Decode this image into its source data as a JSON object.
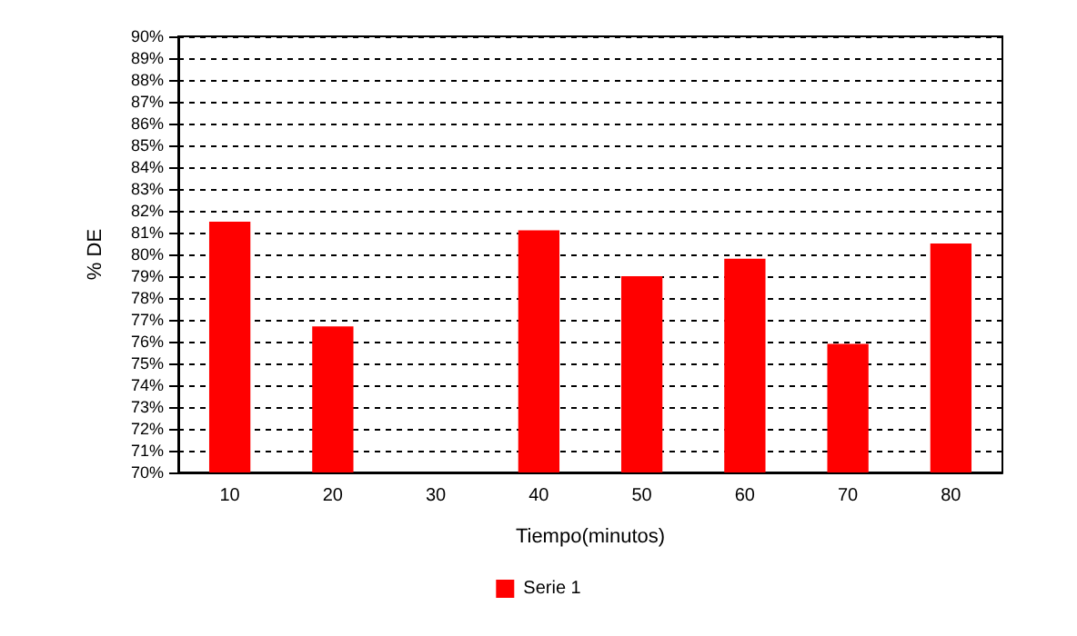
{
  "chart_data": {
    "type": "bar",
    "xlabel": "Tiempo(minutos)",
    "ylabel": "% DE",
    "categories": [
      "10",
      "20",
      "30",
      "40",
      "50",
      "60",
      "70",
      "80"
    ],
    "series": [
      {
        "name": "Serie 1",
        "color": "#ff0000",
        "values": [
          81.5,
          76.7,
          null,
          81.1,
          79.0,
          79.8,
          75.9,
          80.5
        ]
      }
    ],
    "ylim": [
      70,
      90
    ],
    "yticks": [
      {
        "value": 70,
        "label": "70%"
      },
      {
        "value": 71,
        "label": "71%"
      },
      {
        "value": 72,
        "label": "72%"
      },
      {
        "value": 73,
        "label": "73%"
      },
      {
        "value": 74,
        "label": "74%"
      },
      {
        "value": 75,
        "label": "75%"
      },
      {
        "value": 76,
        "label": "76%"
      },
      {
        "value": 77,
        "label": "77%"
      },
      {
        "value": 78,
        "label": "78%"
      },
      {
        "value": 79,
        "label": "79%"
      },
      {
        "value": 80,
        "label": "80%"
      },
      {
        "value": 81,
        "label": "81%"
      },
      {
        "value": 82,
        "label": "82%"
      },
      {
        "value": 83,
        "label": "83%"
      },
      {
        "value": 84,
        "label": "84%"
      },
      {
        "value": 85,
        "label": "85%"
      },
      {
        "value": 86,
        "label": "86%"
      },
      {
        "value": 87,
        "label": "87%"
      },
      {
        "value": 88,
        "label": "88%"
      },
      {
        "value": 89,
        "label": "89%"
      },
      {
        "value": 90,
        "label": "90%"
      }
    ],
    "grid": "y",
    "legend": "bottom"
  }
}
